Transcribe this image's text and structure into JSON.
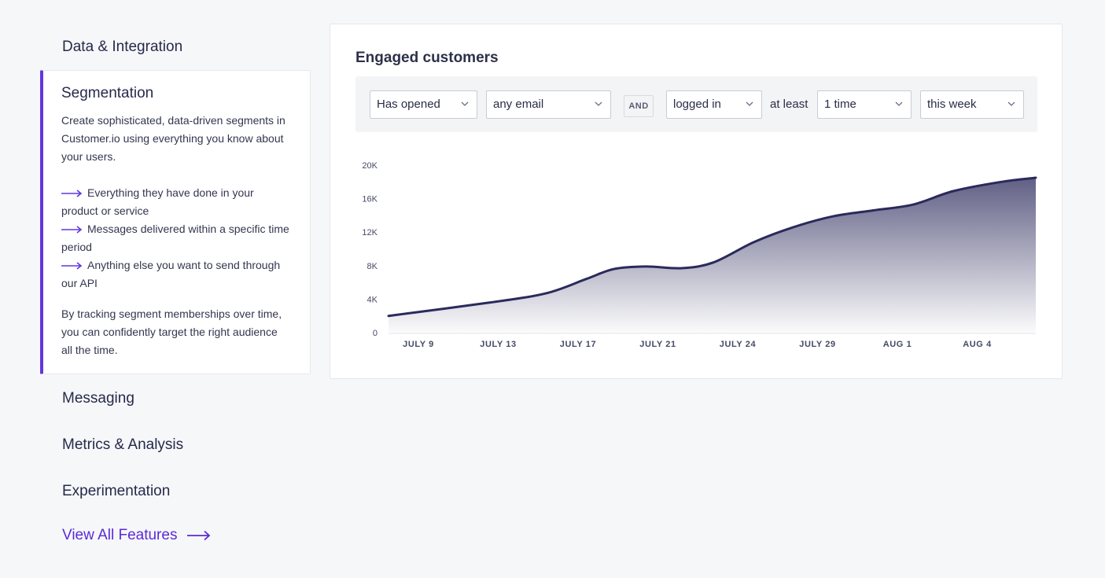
{
  "nav": {
    "items_before": [
      {
        "label": "Data & Integration"
      }
    ],
    "active": {
      "title": "Segmentation",
      "description": "Create sophisticated, data-driven segments in Customer.io using everything you know about your users.",
      "bullets": [
        "Everything they have done in your product or service",
        "Messages delivered within a specific time period",
        "Anything else you want to send through our API"
      ],
      "footer": "By tracking segment memberships over time, you can confidently target the right audience all the time."
    },
    "items_after": [
      {
        "label": "Messaging"
      },
      {
        "label": "Metrics & Analysis"
      },
      {
        "label": "Experimentation"
      }
    ],
    "view_all": "View All Features"
  },
  "card": {
    "title": "Engaged customers",
    "filters": {
      "action": "Has opened",
      "target": "any email",
      "conjunction": "AND",
      "event": "logged in",
      "qualifier": "at least",
      "frequency": "1 time",
      "period": "this week"
    }
  },
  "colors": {
    "accent": "#6236e0",
    "line": "#2b2a5c"
  },
  "chart_data": {
    "type": "area",
    "x": [
      "JULY 9",
      "JULY 13",
      "JULY 17",
      "JULY 21",
      "JULY 24",
      "JULY 29",
      "AUG 1",
      "AUG 4"
    ],
    "y_ticks": [
      "0",
      "4K",
      "8K",
      "12K",
      "16K",
      "20K"
    ],
    "ylim": [
      0,
      20000
    ],
    "series": [
      {
        "points": [
          [
            0,
            2000
          ],
          [
            0.9,
            3600
          ],
          [
            1.6,
            4700
          ],
          [
            2.1,
            6400
          ],
          [
            2.45,
            7600
          ],
          [
            2.85,
            7900
          ],
          [
            3.3,
            7700
          ],
          [
            3.7,
            8400
          ],
          [
            4.2,
            10800
          ],
          [
            4.7,
            12600
          ],
          [
            5.2,
            13900
          ],
          [
            5.7,
            14600
          ],
          [
            6.2,
            15300
          ],
          [
            6.7,
            16900
          ],
          [
            7.3,
            18000
          ],
          [
            7.75,
            18500
          ]
        ]
      }
    ]
  }
}
